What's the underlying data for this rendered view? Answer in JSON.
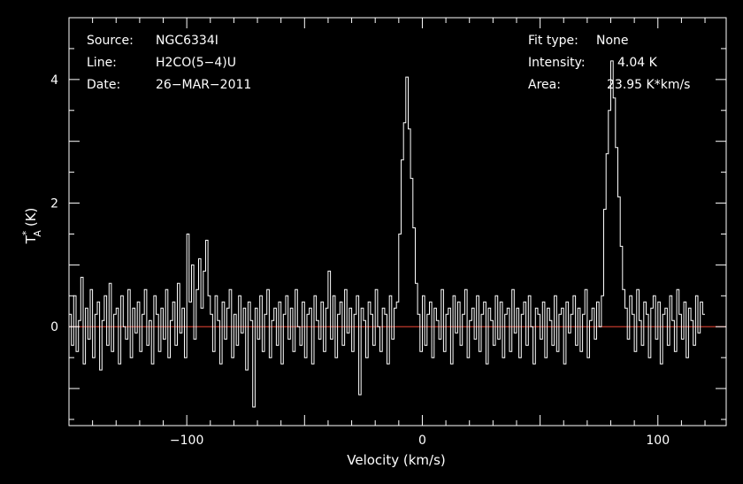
{
  "colors": {
    "background": "#000000",
    "foreground": "#ffffff",
    "baseline": "#c0392b"
  },
  "annotations": {
    "source_label": "Source:",
    "source_value": "NGC6334I",
    "line_label": "Line:",
    "line_value": "H2CO(5−4)U",
    "date_label": "Date:",
    "date_value": "26−MAR−2011",
    "fit_label": "Fit type:",
    "fit_value": "None",
    "intensity_label": "Intensity:",
    "intensity_value": "4.04 K",
    "area_label": "Area:",
    "area_value": "23.95 K*km/s"
  },
  "chart_data": {
    "type": "line",
    "xlabel": "Velocity (km/s)",
    "ylabel": "(K)",
    "ylabel_symbol": "T",
    "ylabel_sup": "*",
    "ylabel_sub": "A",
    "xlim": [
      -150,
      129
    ],
    "ylim": [
      -1.6,
      5.0
    ],
    "x_ticks": [
      -100,
      0,
      100
    ],
    "x_tick_labels": [
      "−100",
      "0",
      "100"
    ],
    "y_ticks": [
      0,
      2,
      4
    ],
    "y_tick_labels": [
      "0",
      "2",
      "4"
    ],
    "baseline_y": 0,
    "grid": false,
    "series": [
      {
        "values_description_only": false,
        "x_start": -150,
        "x_step": 1,
        "values": [
          0.2,
          -0.3,
          0.5,
          -0.4,
          0.1,
          0.8,
          -0.6,
          0.3,
          -0.2,
          0.6,
          -0.5,
          0.2,
          0.4,
          -0.7,
          0.1,
          0.5,
          -0.3,
          0.7,
          -0.4,
          0.2,
          0.3,
          -0.6,
          0.5,
          0.0,
          -0.2,
          0.6,
          -0.5,
          0.3,
          -0.1,
          0.4,
          -0.4,
          0.2,
          0.6,
          -0.3,
          0.1,
          -0.6,
          0.5,
          0.2,
          -0.4,
          0.3,
          -0.2,
          0.6,
          -0.5,
          0.1,
          0.4,
          -0.3,
          0.7,
          -0.1,
          0.3,
          -0.5,
          1.5,
          0.4,
          1.0,
          -0.2,
          0.6,
          1.1,
          0.3,
          0.9,
          1.4,
          0.5,
          0.2,
          -0.4,
          0.5,
          0.1,
          -0.6,
          0.4,
          -0.2,
          0.3,
          0.6,
          -0.5,
          0.2,
          -0.3,
          0.5,
          -0.1,
          0.3,
          -0.7,
          0.4,
          0.1,
          -1.3,
          0.3,
          -0.2,
          0.5,
          -0.4,
          0.2,
          0.6,
          -0.5,
          0.1,
          0.3,
          -0.3,
          0.4,
          -0.6,
          0.2,
          0.5,
          -0.2,
          0.3,
          -0.4,
          0.6,
          0.0,
          -0.3,
          0.4,
          -0.5,
          0.2,
          0.3,
          -0.6,
          0.5,
          0.1,
          -0.2,
          0.4,
          -0.4,
          0.3,
          0.9,
          -0.2,
          0.5,
          -0.5,
          0.2,
          0.4,
          -0.3,
          0.6,
          -0.1,
          0.3,
          -0.4,
          0.2,
          0.5,
          -1.1,
          0.3,
          0.1,
          -0.5,
          0.4,
          0.2,
          -0.3,
          0.6,
          0.0,
          -0.4,
          0.3,
          0.2,
          -0.6,
          0.5,
          -0.2,
          0.3,
          0.4,
          1.5,
          2.7,
          3.3,
          4.04,
          3.2,
          2.4,
          1.6,
          0.7,
          0.2,
          -0.4,
          0.5,
          -0.3,
          0.2,
          0.4,
          -0.5,
          0.3,
          0.1,
          -0.2,
          0.6,
          -0.4,
          0.2,
          0.3,
          -0.6,
          0.5,
          -0.1,
          0.4,
          -0.3,
          0.2,
          0.6,
          -0.5,
          0.1,
          0.3,
          -0.2,
          0.5,
          -0.4,
          0.2,
          0.4,
          -0.6,
          0.3,
          0.1,
          -0.3,
          0.5,
          -0.2,
          0.4,
          -0.5,
          0.2,
          0.3,
          -0.4,
          0.6,
          -0.1,
          0.3,
          -0.5,
          0.2,
          0.4,
          -0.3,
          0.5,
          0.0,
          -0.6,
          0.3,
          0.2,
          -0.2,
          0.4,
          -0.5,
          0.3,
          0.1,
          -0.3,
          0.5,
          -0.4,
          0.2,
          0.3,
          -0.6,
          0.4,
          -0.1,
          0.2,
          0.5,
          -0.3,
          0.3,
          -0.4,
          0.2,
          0.6,
          -0.5,
          0.1,
          0.3,
          -0.2,
          0.4,
          0.0,
          0.5,
          1.9,
          2.8,
          3.5,
          4.3,
          3.7,
          2.9,
          2.1,
          1.3,
          0.6,
          0.3,
          -0.2,
          0.5,
          0.2,
          -0.4,
          0.6,
          0.1,
          -0.3,
          0.4,
          0.2,
          -0.5,
          0.3,
          0.5,
          -0.2,
          0.4,
          -0.6,
          0.2,
          0.3,
          -0.3,
          0.5,
          0.1,
          -0.4,
          0.6,
          0.2,
          -0.2,
          0.4,
          -0.5,
          0.3,
          0.1,
          -0.3,
          0.5,
          -0.1,
          0.4,
          0.2
        ]
      }
    ]
  }
}
